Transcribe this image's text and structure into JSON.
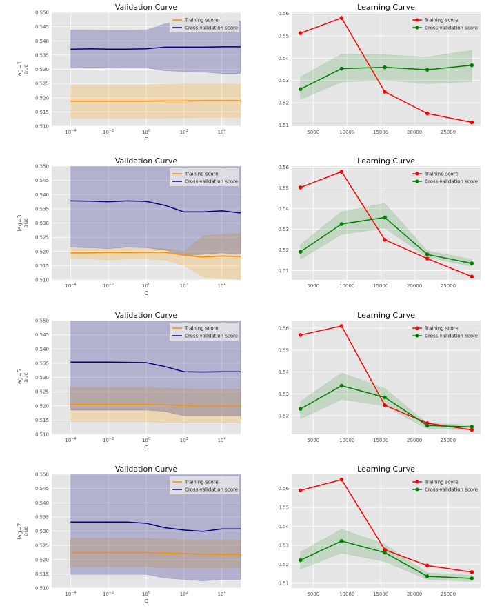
{
  "chart_data": [
    {
      "type": "line",
      "title": "Validation Curve",
      "xlabel": "C",
      "ylabel": "lag=1\nauc",
      "xscale": "log",
      "xlim": [
        1e-05,
        100000
      ],
      "ylim": [
        0.51,
        0.55
      ],
      "x_ticks": [
        "10^-4",
        "10^-2",
        "10^0",
        "10^2",
        "10^4"
      ],
      "y_ticks": [
        "0.510",
        "0.515",
        "0.520",
        "0.525",
        "0.530",
        "0.535",
        "0.540",
        "0.545",
        "0.550"
      ],
      "x": [
        0.0001,
        0.001,
        0.01,
        0.1,
        1,
        10,
        100,
        1000,
        10000,
        100000
      ],
      "series": [
        {
          "name": "Training score",
          "color": "#ff8c00",
          "values": [
            0.5188,
            0.5188,
            0.5188,
            0.5188,
            0.5188,
            0.5189,
            0.5189,
            0.519,
            0.519,
            0.519
          ],
          "band_low": [
            0.5128,
            0.5128,
            0.5128,
            0.5128,
            0.5128,
            0.5129,
            0.5129,
            0.513,
            0.513,
            0.513
          ],
          "band_high": [
            0.5245,
            0.5245,
            0.5245,
            0.5245,
            0.5245,
            0.5248,
            0.525,
            0.525,
            0.525,
            0.525
          ]
        },
        {
          "name": "Cross-validation score",
          "color": "#000080",
          "values": [
            0.5371,
            0.5372,
            0.5371,
            0.5371,
            0.5372,
            0.5378,
            0.5378,
            0.5378,
            0.5379,
            0.5379
          ],
          "band_low": [
            0.5305,
            0.5307,
            0.5306,
            0.5305,
            0.5305,
            0.5295,
            0.5292,
            0.529,
            0.5285,
            0.5285
          ],
          "band_high": [
            0.5438,
            0.5438,
            0.5437,
            0.5437,
            0.5438,
            0.546,
            0.547,
            0.547,
            0.547,
            0.547
          ]
        }
      ],
      "legend": "top-right",
      "grid": true
    },
    {
      "type": "line",
      "title": "Learning Curve",
      "xlabel": "",
      "ylabel": "",
      "xlim": [
        1800,
        29800
      ],
      "ylim": [
        0.5095,
        0.5605
      ],
      "x_ticks": [
        "5000",
        "10000",
        "15000",
        "20000",
        "25000"
      ],
      "y_ticks": [
        "0.51",
        "0.52",
        "0.53",
        "0.54",
        "0.55",
        "0.56"
      ],
      "x": [
        3100,
        9200,
        15600,
        21900,
        28500
      ],
      "series": [
        {
          "name": "Training score",
          "color": "#ff0000",
          "values": [
            0.5512,
            0.558,
            0.5249,
            0.5152,
            0.5112
          ],
          "band_low": [
            0.5512,
            0.558,
            0.5249,
            0.5152,
            0.5112
          ],
          "band_high": [
            0.5512,
            0.558,
            0.5249,
            0.5152,
            0.5112
          ]
        },
        {
          "name": "Cross-validation score",
          "color": "#008000",
          "values": [
            0.5261,
            0.5353,
            0.5359,
            0.5348,
            0.5368
          ],
          "band_low": [
            0.5215,
            0.5293,
            0.5302,
            0.5285,
            0.5295
          ],
          "band_high": [
            0.5315,
            0.5418,
            0.5415,
            0.5405,
            0.5435
          ]
        }
      ],
      "legend": "top-right",
      "grid": true
    },
    {
      "type": "line",
      "title": "Validation Curve",
      "xlabel": "C",
      "ylabel": "lag=3\nauc",
      "xscale": "log",
      "xlim": [
        1e-05,
        100000
      ],
      "ylim": [
        0.51,
        0.55
      ],
      "x_ticks": [
        "10^-4",
        "10^-2",
        "10^0",
        "10^2",
        "10^4"
      ],
      "y_ticks": [
        "0.510",
        "0.515",
        "0.520",
        "0.525",
        "0.530",
        "0.535",
        "0.540",
        "0.545",
        "0.550"
      ],
      "x": [
        0.0001,
        0.001,
        0.01,
        0.1,
        1,
        10,
        100,
        1000,
        10000,
        100000
      ],
      "series": [
        {
          "name": "Training score",
          "color": "#ff8c00",
          "values": [
            0.5195,
            0.5195,
            0.5197,
            0.5196,
            0.5197,
            0.5197,
            0.5187,
            0.518,
            0.5184,
            0.5182
          ],
          "band_low": [
            0.5175,
            0.5173,
            0.517,
            0.5173,
            0.5173,
            0.517,
            0.515,
            0.511,
            0.5105,
            0.51
          ],
          "band_high": [
            0.5215,
            0.5213,
            0.521,
            0.5215,
            0.5213,
            0.521,
            0.52,
            0.5255,
            0.526,
            0.5265
          ]
        },
        {
          "name": "Cross-validation score",
          "color": "#000080",
          "values": [
            0.5378,
            0.5377,
            0.5375,
            0.5378,
            0.5376,
            0.5362,
            0.5339,
            0.5339,
            0.5343,
            0.5335
          ],
          "band_low": [
            0.5215,
            0.5213,
            0.521,
            0.5215,
            0.5213,
            0.5205,
            0.5185,
            0.519,
            0.5195,
            0.519
          ],
          "band_high": [
            0.555,
            0.555,
            0.555,
            0.555,
            0.555,
            0.555,
            0.555,
            0.555,
            0.555,
            0.555
          ]
        }
      ],
      "legend": "top-right",
      "grid": true
    },
    {
      "type": "line",
      "title": "Learning Curve",
      "xlabel": "",
      "ylabel": "",
      "xlim": [
        1800,
        29800
      ],
      "ylim": [
        0.5055,
        0.5605
      ],
      "x_ticks": [
        "5000",
        "10000",
        "15000",
        "20000",
        "25000"
      ],
      "y_ticks": [
        "0.51",
        "0.52",
        "0.53",
        "0.54",
        "0.55",
        "0.56"
      ],
      "x": [
        3100,
        9200,
        15600,
        21900,
        28500
      ],
      "series": [
        {
          "name": "Training score",
          "color": "#ff0000",
          "values": [
            0.5502,
            0.5578,
            0.5249,
            0.5158,
            0.5071
          ],
          "band_low": [
            0.5502,
            0.5578,
            0.5249,
            0.5158,
            0.5071
          ],
          "band_high": [
            0.5502,
            0.5578,
            0.5249,
            0.5158,
            0.5071
          ]
        },
        {
          "name": "Cross-validation score",
          "color": "#008000",
          "values": [
            0.5191,
            0.5325,
            0.5357,
            0.5178,
            0.5135
          ],
          "band_low": [
            0.5155,
            0.5275,
            0.5305,
            0.5165,
            0.512
          ],
          "band_high": [
            0.5225,
            0.5385,
            0.5425,
            0.5195,
            0.5155
          ]
        }
      ],
      "legend": "top-right",
      "grid": true
    },
    {
      "type": "line",
      "title": "Validation Curve",
      "xlabel": "C",
      "ylabel": "lag=5\nauc",
      "xscale": "log",
      "xlim": [
        1e-05,
        100000
      ],
      "ylim": [
        0.51,
        0.55
      ],
      "x_ticks": [
        "10^-4",
        "10^-2",
        "10^0",
        "10^2",
        "10^4"
      ],
      "y_ticks": [
        "0.510",
        "0.515",
        "0.520",
        "0.525",
        "0.530",
        "0.535",
        "0.540",
        "0.545",
        "0.550"
      ],
      "x": [
        0.0001,
        0.001,
        0.01,
        0.1,
        1,
        10,
        100,
        1000,
        10000,
        100000
      ],
      "series": [
        {
          "name": "Training score",
          "color": "#ff8c00",
          "values": [
            0.5205,
            0.5205,
            0.5205,
            0.5205,
            0.5205,
            0.5203,
            0.5201,
            0.5199,
            0.5199,
            0.5199
          ],
          "band_low": [
            0.5145,
            0.5145,
            0.5145,
            0.5145,
            0.5145,
            0.514,
            0.514,
            0.514,
            0.514,
            0.514
          ],
          "band_high": [
            0.5265,
            0.5265,
            0.5265,
            0.5265,
            0.5265,
            0.5262,
            0.526,
            0.5258,
            0.5258,
            0.5258
          ]
        },
        {
          "name": "Cross-validation score",
          "color": "#000080",
          "values": [
            0.5354,
            0.5354,
            0.5354,
            0.5353,
            0.5352,
            0.5338,
            0.532,
            0.5319,
            0.532,
            0.532
          ],
          "band_low": [
            0.5185,
            0.5185,
            0.5185,
            0.5185,
            0.5185,
            0.518,
            0.5165,
            0.5165,
            0.5165,
            0.5165
          ],
          "band_high": [
            0.555,
            0.555,
            0.555,
            0.555,
            0.555,
            0.555,
            0.555,
            0.555,
            0.555,
            0.555
          ]
        }
      ],
      "legend": "top-right",
      "grid": true
    },
    {
      "type": "line",
      "title": "Learning Curve",
      "xlabel": "",
      "ylabel": "",
      "xlim": [
        1800,
        29800
      ],
      "ylim": [
        0.5115,
        0.5635
      ],
      "x_ticks": [
        "5000",
        "10000",
        "15000",
        "20000",
        "25000"
      ],
      "y_ticks": [
        "0.52",
        "0.53",
        "0.54",
        "0.55",
        "0.56"
      ],
      "x": [
        3100,
        9200,
        15600,
        21900,
        28500
      ],
      "series": [
        {
          "name": "Training score",
          "color": "#ff0000",
          "values": [
            0.5569,
            0.561,
            0.5248,
            0.5166,
            0.5135
          ],
          "band_low": [
            0.5569,
            0.561,
            0.5248,
            0.5166,
            0.5135
          ],
          "band_high": [
            0.5569,
            0.561,
            0.5248,
            0.5166,
            0.5135
          ]
        },
        {
          "name": "Cross-validation score",
          "color": "#008000",
          "values": [
            0.5231,
            0.5337,
            0.5284,
            0.5155,
            0.5149
          ],
          "band_low": [
            0.5185,
            0.5275,
            0.5245,
            0.514,
            0.5135
          ],
          "band_high": [
            0.5265,
            0.5395,
            0.5325,
            0.5165,
            0.5158
          ]
        }
      ],
      "legend": "top-right",
      "grid": true
    },
    {
      "type": "line",
      "title": "Validation Curve",
      "xlabel": "C",
      "ylabel": "lag=7\nauc",
      "xscale": "log",
      "xlim": [
        1e-05,
        100000
      ],
      "ylim": [
        0.51,
        0.55
      ],
      "x_ticks": [
        "10^-4",
        "10^-2",
        "10^0",
        "10^2",
        "10^4"
      ],
      "y_ticks": [
        "0.510",
        "0.515",
        "0.520",
        "0.525",
        "0.530",
        "0.535",
        "0.540",
        "0.545",
        "0.550"
      ],
      "x": [
        0.0001,
        0.001,
        0.01,
        0.1,
        1,
        10,
        100,
        1000,
        10000,
        100000
      ],
      "series": [
        {
          "name": "Training score",
          "color": "#ff8c00",
          "values": [
            0.5225,
            0.5225,
            0.5225,
            0.5225,
            0.5225,
            0.5223,
            0.5221,
            0.5219,
            0.5218,
            0.5218
          ],
          "band_low": [
            0.5175,
            0.5175,
            0.5175,
            0.5175,
            0.5175,
            0.517,
            0.517,
            0.517,
            0.517,
            0.517
          ],
          "band_high": [
            0.5275,
            0.5275,
            0.5275,
            0.5275,
            0.5275,
            0.5272,
            0.527,
            0.5268,
            0.5268,
            0.5268
          ]
        },
        {
          "name": "Cross-validation score",
          "color": "#000080",
          "values": [
            0.5332,
            0.5332,
            0.5332,
            0.5332,
            0.5328,
            0.5312,
            0.5304,
            0.5299,
            0.5308,
            0.5308
          ],
          "band_low": [
            0.5148,
            0.5148,
            0.5148,
            0.5148,
            0.5148,
            0.5135,
            0.513,
            0.5125,
            0.513,
            0.513
          ],
          "band_high": [
            0.555,
            0.555,
            0.555,
            0.555,
            0.555,
            0.555,
            0.555,
            0.555,
            0.555,
            0.555
          ]
        }
      ],
      "legend": "top-right",
      "grid": true
    },
    {
      "type": "line",
      "title": "Learning Curve",
      "xlabel": "",
      "ylabel": "",
      "xlim": [
        1800,
        29800
      ],
      "ylim": [
        0.5075,
        0.5675
      ],
      "x_ticks": [
        "5000",
        "10000",
        "15000",
        "20000",
        "25000"
      ],
      "y_ticks": [
        "0.51",
        "0.52",
        "0.53",
        "0.54",
        "0.55",
        "0.56"
      ],
      "x": [
        3100,
        9200,
        15600,
        21900,
        28500
      ],
      "series": [
        {
          "name": "Training score",
          "color": "#ff0000",
          "values": [
            0.559,
            0.5647,
            0.5277,
            0.5194,
            0.5159
          ],
          "band_low": [
            0.559,
            0.5647,
            0.5277,
            0.5194,
            0.5159
          ],
          "band_high": [
            0.559,
            0.5647,
            0.5277,
            0.5194,
            0.5159
          ]
        },
        {
          "name": "Cross-validation score",
          "color": "#008000",
          "values": [
            0.5222,
            0.5323,
            0.5262,
            0.5137,
            0.5126
          ],
          "band_low": [
            0.5175,
            0.526,
            0.5215,
            0.512,
            0.511
          ],
          "band_high": [
            0.5265,
            0.5385,
            0.5305,
            0.5155,
            0.5142
          ]
        }
      ],
      "legend": "top-right",
      "grid": true
    }
  ]
}
